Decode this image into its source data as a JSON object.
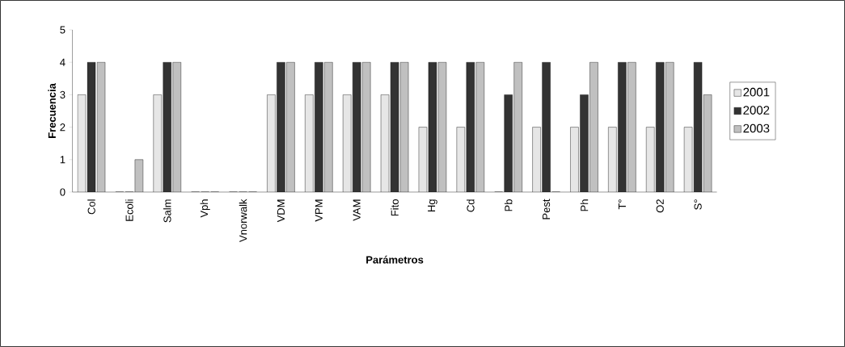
{
  "chart_data": {
    "type": "bar",
    "xlabel": "Parámetros",
    "ylabel": "Frecuencia",
    "categories": [
      "Col",
      "Ecoli",
      "Salm",
      "Vph",
      "Vnorwalk",
      "VDM",
      "VPM",
      "VAM",
      "Fito",
      "Hg",
      "Cd",
      "Pb",
      "Pest",
      "Ph",
      "T°",
      "O2",
      "S°"
    ],
    "series": [
      {
        "name": "2001",
        "color": "#e6e6e6",
        "values": [
          3,
          0,
          3,
          0,
          0,
          3,
          3,
          3,
          3,
          2,
          2,
          0,
          2,
          2,
          2,
          2,
          2
        ]
      },
      {
        "name": "2002",
        "color": "#333333",
        "values": [
          4,
          0,
          4,
          0,
          0,
          4,
          4,
          4,
          4,
          4,
          4,
          3,
          4,
          3,
          4,
          4,
          4
        ]
      },
      {
        "name": "2003",
        "color": "#c0c0c0",
        "values": [
          4,
          1,
          4,
          0,
          0,
          4,
          4,
          4,
          4,
          4,
          4,
          4,
          0,
          4,
          4,
          4,
          3
        ]
      }
    ],
    "ylim": [
      0,
      5
    ],
    "yticks": [
      0,
      1,
      2,
      3,
      4,
      5
    ],
    "grid": false,
    "legend": "right"
  }
}
